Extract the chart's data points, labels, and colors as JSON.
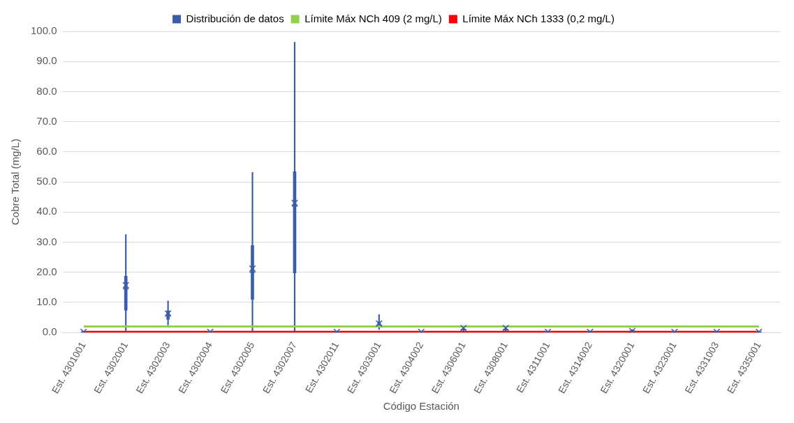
{
  "chart_data": {
    "type": "box",
    "xlabel": "Código Estación",
    "ylabel": "Cobre Total (mg/L)",
    "categories": [
      "Est. 4301001",
      "Est. 4302001",
      "Est. 4302003",
      "Est. 4302004",
      "Est. 4302005",
      "Est. 4302007",
      "Est. 4302011",
      "Est. 4303001",
      "Est. 4304002",
      "Est. 4306001",
      "Est. 4308001",
      "Est. 4311001",
      "Est. 4314002",
      "Est. 4320001",
      "Est. 4323001",
      "Est. 4331003",
      "Est. 4335001"
    ],
    "series": [
      {
        "name": "Distribución de datos",
        "color": "#3a5da8",
        "marker": "cross",
        "boxes": [
          {
            "low": 0.1,
            "q1": 0.1,
            "median": 0.2,
            "q3": 0.3,
            "high": 0.4,
            "mean": 0.2
          },
          {
            "low": 0.5,
            "q1": 7.4,
            "median": 14.5,
            "q3": 18.7,
            "high": 32.5,
            "mean": 15.7
          },
          {
            "low": 2.5,
            "q1": 4.4,
            "median": 5.8,
            "q3": 7.2,
            "high": 10.5,
            "mean": 6.3
          },
          {
            "low": 0.1,
            "q1": 0.1,
            "median": 0.2,
            "q3": 0.3,
            "high": 0.4,
            "mean": 0.2
          },
          {
            "low": 0.5,
            "q1": 11,
            "median": 20,
            "q3": 28.9,
            "high": 53.2,
            "mean": 21.2
          },
          {
            "low": 0.5,
            "q1": 19.8,
            "median": 42,
            "q3": 53.4,
            "high": 96.4,
            "mean": 43
          },
          {
            "low": 0.1,
            "q1": 0.1,
            "median": 0.2,
            "q3": 0.3,
            "high": 0.4,
            "mean": 0.2
          },
          {
            "low": 1,
            "q1": 2,
            "median": 2.5,
            "q3": 3.5,
            "high": 6,
            "mean": 3
          },
          {
            "low": 0.1,
            "q1": 0.1,
            "median": 0.2,
            "q3": 0.3,
            "high": 0.4,
            "mean": 0.2
          },
          {
            "low": 0.5,
            "q1": 0.8,
            "median": 1,
            "q3": 1.3,
            "high": 1.8,
            "mean": 1.5
          },
          {
            "low": 0.5,
            "q1": 0.8,
            "median": 1,
            "q3": 1.3,
            "high": 1.8,
            "mean": 1.5
          },
          {
            "low": 0.1,
            "q1": 0.1,
            "median": 0.2,
            "q3": 0.3,
            "high": 0.4,
            "mean": 0.2
          },
          {
            "low": 0.1,
            "q1": 0.1,
            "median": 0.2,
            "q3": 0.3,
            "high": 0.4,
            "mean": 0.2
          },
          {
            "low": 0.2,
            "q1": 0.3,
            "median": 0.5,
            "q3": 0.7,
            "high": 1,
            "mean": 0.5
          },
          {
            "low": 0.1,
            "q1": 0.1,
            "median": 0.2,
            "q3": 0.3,
            "high": 0.4,
            "mean": 0.2
          },
          {
            "low": 0.1,
            "q1": 0.1,
            "median": 0.2,
            "q3": 0.3,
            "high": 0.4,
            "mean": 0.2
          },
          {
            "low": 0.1,
            "q1": 0.1,
            "median": 0.2,
            "q3": 0.3,
            "high": 0.4,
            "mean": 0.2
          }
        ]
      },
      {
        "name": "Límite Máx NCh 409 (2 mg/L)",
        "type": "line",
        "color": "#92d050",
        "marker": "none",
        "values": [
          2,
          2,
          2,
          2,
          2,
          2,
          2,
          2,
          2,
          2,
          2,
          2,
          2,
          2,
          2,
          2,
          2
        ]
      },
      {
        "name": "Límite Máx NCh 1333 (0,2 mg/L)",
        "type": "line",
        "color": "#ff0000",
        "marker": "none",
        "values": [
          0.2,
          0.2,
          0.2,
          0.2,
          0.2,
          0.2,
          0.2,
          0.2,
          0.2,
          0.2,
          0.2,
          0.2,
          0.2,
          0.2,
          0.2,
          0.2,
          0.2
        ]
      }
    ],
    "ylim": [
      0,
      100
    ],
    "yticks": [
      {
        "value": 0,
        "label": "0.0"
      },
      {
        "value": 10,
        "label": "10.0"
      },
      {
        "value": 20,
        "label": "20.0"
      },
      {
        "value": 30,
        "label": "30.0"
      },
      {
        "value": 40,
        "label": "40.0"
      },
      {
        "value": 50,
        "label": "50.0"
      },
      {
        "value": 60,
        "label": "60.0"
      },
      {
        "value": 70,
        "label": "70.0"
      },
      {
        "value": 80,
        "label": "80.0"
      },
      {
        "value": 90,
        "label": "90.0"
      },
      {
        "value": 100,
        "label": "100.0"
      }
    ],
    "grid": "y",
    "legend": "top"
  }
}
